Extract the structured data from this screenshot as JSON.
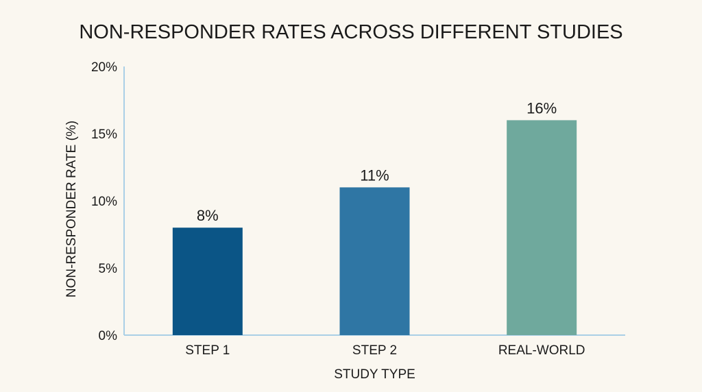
{
  "chart_data": {
    "type": "bar",
    "title": "NON-RESPONDER RATES ACROSS DIFFERENT STUDIES",
    "xlabel": "STUDY TYPE",
    "ylabel": "NON-RESPONDER RATE (%)",
    "categories": [
      "STEP 1",
      "STEP 2",
      "REAL-WORLD"
    ],
    "values": [
      8,
      11,
      16
    ],
    "data_labels": [
      "8%",
      "11%",
      "16%"
    ],
    "ylim": [
      0,
      20
    ],
    "yticks": [
      0,
      5,
      10,
      15,
      20
    ],
    "ytick_labels": [
      "0%",
      "5%",
      "10%",
      "15%",
      "20%"
    ],
    "colors": [
      "#0b5586",
      "#2f76a4",
      "#6fa99d"
    ],
    "axis_color": "#a9cfe6",
    "grid": false,
    "legend": "none"
  }
}
